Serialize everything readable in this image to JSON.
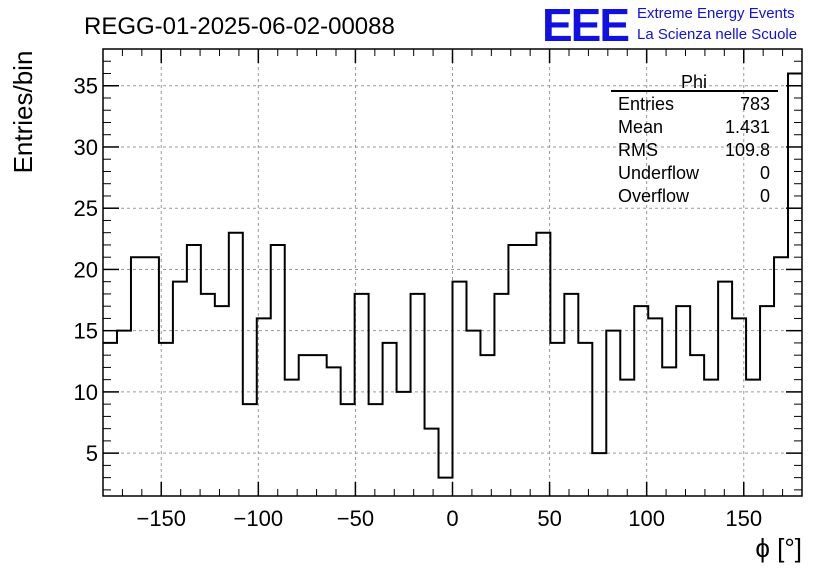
{
  "header": {
    "title": "REGG-01-2025-06-02-00088",
    "logo_text": "EEE",
    "logo_line1": "Extreme Energy Events",
    "logo_line2": "La Scienza nelle Scuole",
    "logo_color": "#1010e0"
  },
  "stats_box": {
    "title": "Phi",
    "rows": [
      {
        "label": "Entries",
        "value": "783"
      },
      {
        "label": "Mean",
        "value": "1.431"
      },
      {
        "label": "RMS",
        "value": "109.8"
      },
      {
        "label": "Underflow",
        "value": "0"
      },
      {
        "label": "Overflow",
        "value": "0"
      }
    ]
  },
  "chart_data": {
    "type": "histogram",
    "xlabel": "ϕ [°]",
    "ylabel": "Entries/bin",
    "xlim": [
      -180,
      180
    ],
    "ylim": [
      1.5,
      38
    ],
    "grid": true,
    "line_color": "#000000",
    "bin_width": 7.2,
    "x_ticks": [
      -150,
      -100,
      -50,
      0,
      50,
      100,
      150
    ],
    "x_tick_labels": [
      "−150",
      "−100",
      "−50",
      "0",
      "50",
      "100",
      "150"
    ],
    "y_ticks": [
      5,
      10,
      15,
      20,
      25,
      30,
      35
    ],
    "y_tick_labels": [
      "5",
      "10",
      "15",
      "20",
      "25",
      "30",
      "35"
    ],
    "bin_edges": [
      -180,
      -172.8,
      -165.6,
      -158.4,
      -151.2,
      -144,
      -136.8,
      -129.6,
      -122.4,
      -115.2,
      -108,
      -100.8,
      -93.6,
      -86.4,
      -79.2,
      -72,
      -64.8,
      -57.6,
      -50.4,
      -43.2,
      -36,
      -28.8,
      -21.6,
      -14.4,
      -7.2,
      0,
      7.2,
      14.4,
      21.6,
      28.8,
      36,
      43.2,
      50.4,
      57.6,
      64.8,
      72,
      79.2,
      86.4,
      93.6,
      100.8,
      108,
      115.2,
      122.4,
      129.6,
      136.8,
      144,
      151.2,
      158.4,
      165.6,
      172.8,
      180
    ],
    "values": [
      14,
      15,
      21,
      21,
      14,
      19,
      22,
      18,
      17,
      23,
      9,
      16,
      22,
      11,
      13,
      13,
      12,
      9,
      18,
      9,
      14,
      10,
      18,
      7,
      3,
      19,
      15,
      13,
      18,
      22,
      22,
      23,
      14,
      18,
      14,
      5,
      15,
      11,
      17,
      16,
      12,
      17,
      13,
      11,
      19,
      16,
      11,
      17,
      21,
      36
    ]
  }
}
